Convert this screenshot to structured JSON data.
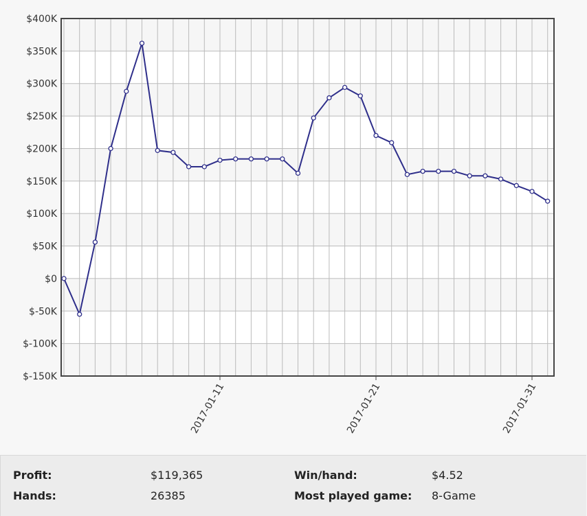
{
  "chart_data": {
    "type": "line",
    "x": [
      "2017-01-01",
      "2017-01-02",
      "2017-01-03",
      "2017-01-04",
      "2017-01-05",
      "2017-01-06",
      "2017-01-07",
      "2017-01-08",
      "2017-01-09",
      "2017-01-10",
      "2017-01-11",
      "2017-01-12",
      "2017-01-13",
      "2017-01-14",
      "2017-01-15",
      "2017-01-16",
      "2017-01-17",
      "2017-01-18",
      "2017-01-19",
      "2017-01-20",
      "2017-01-21",
      "2017-01-22",
      "2017-01-23",
      "2017-01-24",
      "2017-01-25",
      "2017-01-26",
      "2017-01-27",
      "2017-01-28",
      "2017-01-29",
      "2017-01-30",
      "2017-01-31",
      "2017-02-01"
    ],
    "series": [
      {
        "name": "Profit",
        "color": "#2e2e8a",
        "values": [
          0,
          -55000,
          56000,
          200000,
          288000,
          362000,
          197000,
          194000,
          172000,
          172000,
          182000,
          184000,
          184000,
          184000,
          184000,
          162000,
          247000,
          278000,
          294000,
          281000,
          220000,
          209000,
          160000,
          165000,
          165000,
          165000,
          158000,
          158000,
          153000,
          143000,
          134000,
          119000
        ]
      }
    ],
    "xticks": [
      "2017-01-11",
      "2017-01-21",
      "2017-01-31"
    ],
    "ylim": [
      -150000,
      400000
    ],
    "yticks": [
      {
        "value": -150000,
        "label": "$-150K"
      },
      {
        "value": -100000,
        "label": "$-100K"
      },
      {
        "value": -50000,
        "label": "$-50K"
      },
      {
        "value": 0,
        "label": "$0"
      },
      {
        "value": 50000,
        "label": "$50K"
      },
      {
        "value": 100000,
        "label": "$100K"
      },
      {
        "value": 150000,
        "label": "$150K"
      },
      {
        "value": 200000,
        "label": "$200K"
      },
      {
        "value": 250000,
        "label": "$250K"
      },
      {
        "value": 300000,
        "label": "$300K"
      },
      {
        "value": 350000,
        "label": "$350K"
      },
      {
        "value": 400000,
        "label": "$400K"
      }
    ],
    "grid": true
  },
  "stats": [
    {
      "label": "Profit:",
      "value": "$119,365"
    },
    {
      "label": "Win/hand:",
      "value": "$4.52"
    },
    {
      "label": "Hands:",
      "value": "26385"
    },
    {
      "label": "Most played game:",
      "value": "8-Game"
    }
  ]
}
